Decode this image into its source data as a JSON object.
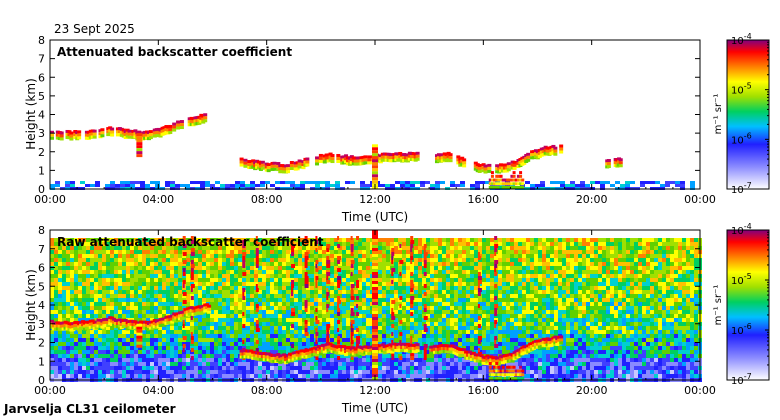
{
  "date": "23 Sept 2025",
  "footer": "Jarvselja CL31 ceilometer",
  "chart_data": [
    {
      "type": "heatmap",
      "title": "Attenuated backscatter coefficient",
      "xlabel": "Time (UTC)",
      "ylabel": "Height (km)",
      "x_ticks": [
        "00:00",
        "04:00",
        "08:00",
        "12:00",
        "16:00",
        "20:00",
        "00:00"
      ],
      "y_ticks": [
        "0",
        "1",
        "2",
        "3",
        "4",
        "5",
        "6",
        "7",
        "8"
      ],
      "ylim": [
        0,
        8
      ],
      "colorbar": {
        "unit_label": "m⁻¹ sr⁻¹",
        "scale": "log",
        "ticks": [
          {
            "base": "10",
            "exp": "-4"
          },
          {
            "base": "10",
            "exp": "-5"
          },
          {
            "base": "10",
            "exp": "-6"
          },
          {
            "base": "10",
            "exp": "-7"
          }
        ],
        "range_log10": [
          -7,
          -4
        ]
      },
      "noise": "low",
      "features": [
        {
          "kind": "cloud",
          "t_start": 0.0,
          "t_end": 5.8,
          "height_km": [
            3.0,
            2.95,
            3.0,
            3.2,
            3.0,
            2.95,
            3.3,
            3.7,
            3.9
          ]
        },
        {
          "kind": "cloud",
          "t_start": 7.0,
          "t_end": 13.5,
          "height_km": [
            1.5,
            1.3,
            1.2,
            1.5,
            1.8,
            1.6,
            1.7,
            1.8,
            1.8
          ]
        },
        {
          "kind": "cloud",
          "t_start": 14.0,
          "t_end": 18.8,
          "height_km": [
            1.7,
            1.8,
            1.5,
            1.2,
            1.1,
            1.3,
            1.8,
            2.1,
            2.2
          ]
        },
        {
          "kind": "fog_column",
          "t": 12.0,
          "height_km": [
            0.0,
            2.4
          ]
        },
        {
          "kind": "fog_column",
          "t": 3.3,
          "height_km": [
            1.8,
            3.0
          ]
        },
        {
          "kind": "precip",
          "t_start": 16.2,
          "t_end": 17.4,
          "height_km": [
            0.0,
            1.0
          ]
        },
        {
          "kind": "cloud",
          "t_start": 20.5,
          "t_end": 21.0,
          "height_km": [
            1.4,
            1.5
          ]
        }
      ]
    },
    {
      "type": "heatmap",
      "title": "Raw attenuated backscatter coefficient",
      "xlabel": "Time (UTC)",
      "ylabel": "Height (km)",
      "x_ticks": [
        "00:00",
        "04:00",
        "08:00",
        "12:00",
        "16:00",
        "20:00",
        "00:00"
      ],
      "y_ticks": [
        "0",
        "1",
        "2",
        "3",
        "4",
        "5",
        "6",
        "7",
        "8"
      ],
      "ylim": [
        0,
        8
      ],
      "colorbar": {
        "unit_label": "m⁻¹ sr⁻¹",
        "scale": "log",
        "ticks": [
          {
            "base": "10",
            "exp": "-4"
          },
          {
            "base": "10",
            "exp": "-5"
          },
          {
            "base": "10",
            "exp": "-6"
          },
          {
            "base": "10",
            "exp": "-7"
          }
        ],
        "range_log10": [
          -7,
          -4
        ]
      },
      "noise": "high",
      "features": [
        {
          "kind": "cloud",
          "t_start": 0.0,
          "t_end": 5.8,
          "height_km": [
            3.0,
            2.95,
            3.0,
            3.2,
            3.0,
            2.95,
            3.3,
            3.7,
            3.9
          ]
        },
        {
          "kind": "cloud",
          "t_start": 7.0,
          "t_end": 13.5,
          "height_km": [
            1.5,
            1.3,
            1.2,
            1.5,
            1.8,
            1.6,
            1.7,
            1.8,
            1.8
          ]
        },
        {
          "kind": "cloud",
          "t_start": 14.0,
          "t_end": 18.8,
          "height_km": [
            1.7,
            1.8,
            1.5,
            1.2,
            1.1,
            1.3,
            1.8,
            2.1,
            2.2
          ]
        },
        {
          "kind": "fog_column",
          "t": 12.0,
          "height_km": [
            0.0,
            8.0
          ]
        },
        {
          "kind": "fog_column",
          "t": 3.3,
          "height_km": [
            1.8,
            3.0
          ]
        },
        {
          "kind": "precip",
          "t_start": 16.2,
          "t_end": 17.4,
          "height_km": [
            0.0,
            1.0
          ]
        }
      ]
    }
  ]
}
